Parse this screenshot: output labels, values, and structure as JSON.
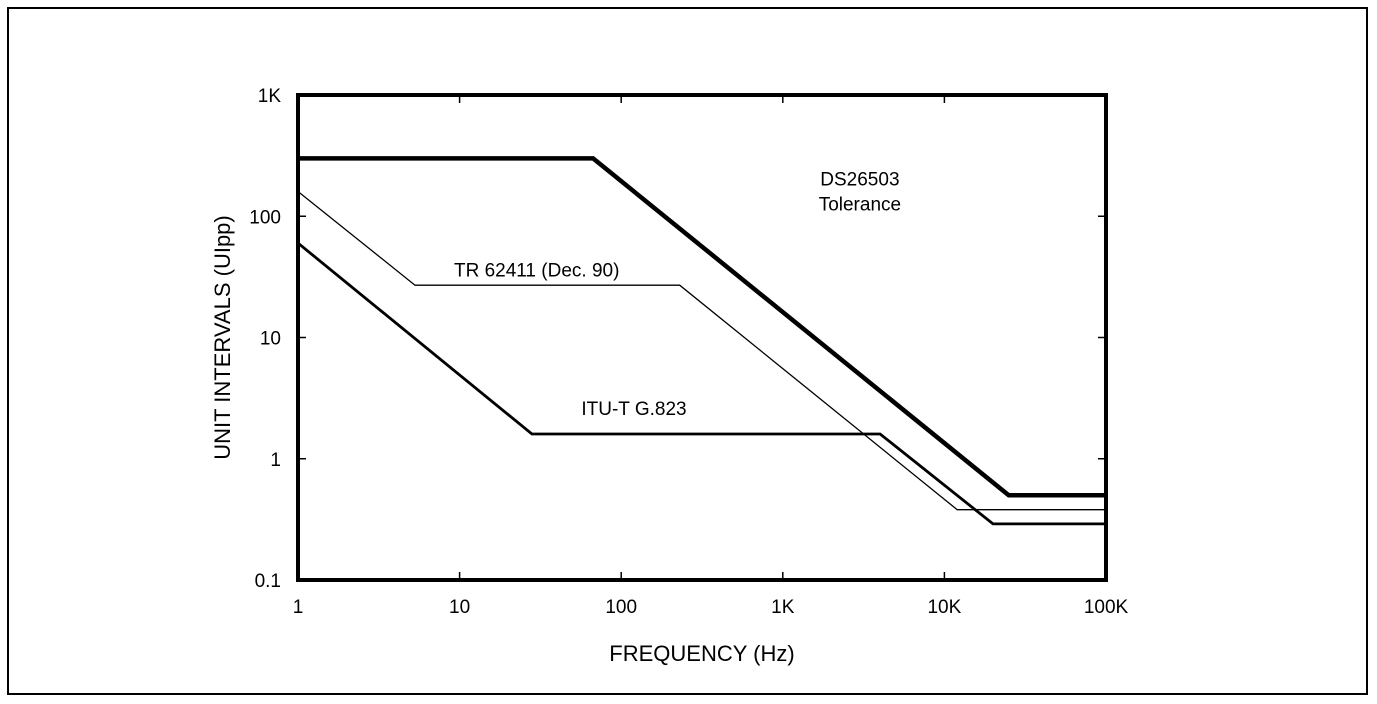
{
  "chart_data": {
    "type": "line",
    "xlabel": "FREQUENCY (Hz)",
    "ylabel": "UNIT INTERVALS (UIpp)",
    "x_scale": "log",
    "y_scale": "log",
    "xlim": [
      1,
      100000
    ],
    "ylim": [
      0.1,
      1000
    ],
    "x_ticks": [
      {
        "value": 1,
        "label": "1"
      },
      {
        "value": 10,
        "label": "10"
      },
      {
        "value": 100,
        "label": "100"
      },
      {
        "value": 1000,
        "label": "1K"
      },
      {
        "value": 10000,
        "label": "10K"
      },
      {
        "value": 100000,
        "label": "100K"
      }
    ],
    "y_ticks": [
      {
        "value": 0.1,
        "label": "0.1"
      },
      {
        "value": 1,
        "label": "1"
      },
      {
        "value": 10,
        "label": "10"
      },
      {
        "value": 100,
        "label": "100"
      },
      {
        "value": 1000,
        "label": "1K"
      }
    ],
    "grid": false,
    "legend": "none",
    "series": [
      {
        "label": [
          "DS26503",
          "Tolerance"
        ],
        "label_at": [
          3000,
          180
        ],
        "style": "thick",
        "x": [
          1,
          67,
          25000,
          100000
        ],
        "y": [
          300,
          300,
          0.5,
          0.5
        ]
      },
      {
        "label": [
          "TR 62411 (Dec. 90)"
        ],
        "label_at": [
          30,
          32
        ],
        "style": "thin",
        "x": [
          1,
          5.3,
          230,
          12000,
          100000
        ],
        "y": [
          160,
          27,
          27,
          0.38,
          0.38
        ]
      },
      {
        "label": [
          "ITU-T G.823"
        ],
        "label_at": [
          120,
          2.3
        ],
        "style": "medium",
        "x": [
          1,
          28,
          4000,
          20000,
          100000
        ],
        "y": [
          60,
          1.6,
          1.6,
          0.29,
          0.29
        ]
      }
    ]
  }
}
